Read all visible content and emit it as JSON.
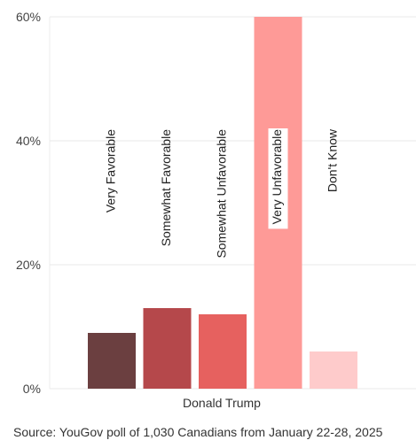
{
  "chart_data": {
    "type": "bar",
    "x_group": "Donald Trump",
    "categories": [
      "Very Favorable",
      "Somewhat Favorable",
      "Somewhat Unfavorable",
      "Very Unfavorable",
      "Don't Know"
    ],
    "values": [
      9,
      13,
      12,
      60,
      6
    ],
    "colors": [
      "#6b3f40",
      "#b5484b",
      "#e6615f",
      "#fe9a97",
      "#fecbcb"
    ],
    "ylim": [
      0,
      60
    ],
    "yticks": [
      0,
      20,
      40,
      60
    ],
    "ytick_labels": [
      "0%",
      "20%",
      "40%",
      "60%"
    ],
    "grid": true,
    "title": "",
    "xlabel": "",
    "ylabel": ""
  },
  "source": "Source: YouGov poll of 1,030 Canadians from January 22-28, 2025"
}
